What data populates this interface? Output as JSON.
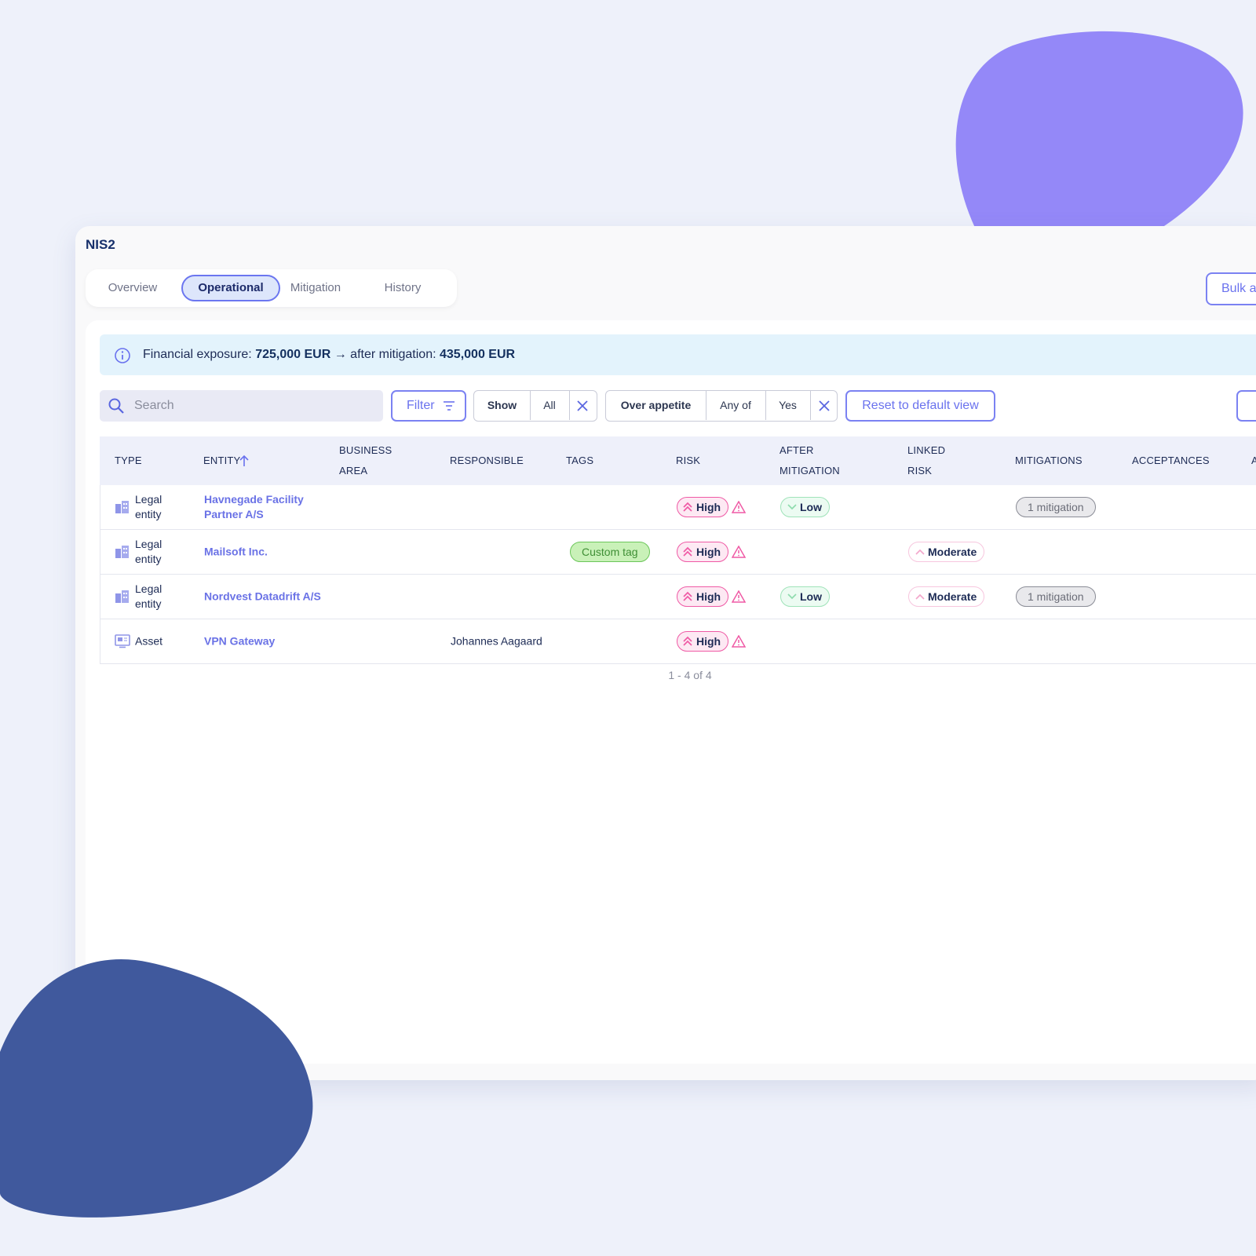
{
  "header": {
    "title": "NIS2"
  },
  "tabs": [
    "Overview",
    "Operational",
    "Mitigation",
    "History"
  ],
  "bulk_button": "Bulk a",
  "info": {
    "label": "Financial exposure:",
    "amount": "725,000 EUR",
    "connector": "→ after mitigation:",
    "after": "435,000 EUR"
  },
  "toolbar": {
    "search_placeholder": "Search",
    "filter": "Filter",
    "show": {
      "label": "Show",
      "value": "All"
    },
    "appetite": {
      "label": "Over appetite",
      "operator": "Any of",
      "value": "Yes"
    },
    "reset": "Reset to default view"
  },
  "table": {
    "columns": [
      "TYPE",
      "ENTITY",
      "BUSINESS AREA",
      "RESPONSIBLE",
      "TAGS",
      "RISK",
      "AFTER MITIGATION",
      "LINKED RISK",
      "MITIGATIONS",
      "ACCEPTANCES",
      "AV"
    ],
    "rows": [
      {
        "type": "Legal entity",
        "entity": "Havnegade Facility Partner A/S",
        "risk": "High",
        "after_mitigation": "Low",
        "mitigations": "1 mitigation"
      },
      {
        "type": "Legal entity",
        "entity": "Mailsoft Inc.",
        "tags": "Custom tag",
        "risk": "High",
        "linked_risk": "Moderate"
      },
      {
        "type": "Legal entity",
        "entity": "Nordvest Datadrift A/S",
        "risk": "High",
        "after_mitigation": "Low",
        "linked_risk": "Moderate",
        "mitigations": "1 mitigation"
      },
      {
        "type": "Asset",
        "entity": "VPN Gateway",
        "responsible": "Johannes Aagaard",
        "risk": "High"
      }
    ]
  },
  "pagination": "1 - 4 of 4"
}
